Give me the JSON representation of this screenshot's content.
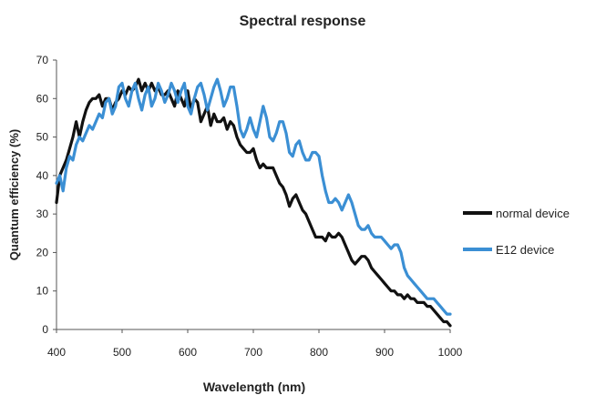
{
  "chart_data": {
    "type": "line",
    "title": "Spectral response",
    "xlabel": "Wavelength (nm)",
    "ylabel": "Quantum efficiency (%)",
    "xlim": [
      400,
      1000
    ],
    "ylim": [
      0,
      70
    ],
    "x_ticks": [
      "400",
      "500",
      "600",
      "700",
      "800",
      "900",
      "1000"
    ],
    "y_ticks": [
      "0",
      "10",
      "20",
      "30",
      "40",
      "50",
      "60",
      "70"
    ],
    "grid": false,
    "legend_position": "right",
    "series": [
      {
        "name": "normal device",
        "color": "#111111",
        "points": [
          [
            400,
            33
          ],
          [
            405,
            40
          ],
          [
            410,
            42
          ],
          [
            415,
            44
          ],
          [
            420,
            47
          ],
          [
            425,
            50
          ],
          [
            430,
            54
          ],
          [
            435,
            50
          ],
          [
            440,
            54
          ],
          [
            445,
            57
          ],
          [
            450,
            59
          ],
          [
            455,
            60
          ],
          [
            460,
            60
          ],
          [
            465,
            61
          ],
          [
            470,
            58
          ],
          [
            475,
            60
          ],
          [
            480,
            60
          ],
          [
            485,
            57
          ],
          [
            490,
            59
          ],
          [
            495,
            60
          ],
          [
            500,
            62
          ],
          [
            505,
            61
          ],
          [
            510,
            63
          ],
          [
            515,
            62
          ],
          [
            520,
            63
          ],
          [
            525,
            65
          ],
          [
            530,
            62
          ],
          [
            535,
            64
          ],
          [
            540,
            62
          ],
          [
            545,
            64
          ],
          [
            550,
            62
          ],
          [
            555,
            63
          ],
          [
            560,
            61
          ],
          [
            565,
            61
          ],
          [
            570,
            62
          ],
          [
            575,
            60
          ],
          [
            580,
            58
          ],
          [
            585,
            62
          ],
          [
            590,
            60
          ],
          [
            595,
            58
          ],
          [
            600,
            62
          ],
          [
            605,
            57
          ],
          [
            610,
            60
          ],
          [
            615,
            59
          ],
          [
            620,
            54
          ],
          [
            625,
            56
          ],
          [
            630,
            58
          ],
          [
            635,
            53
          ],
          [
            640,
            56
          ],
          [
            645,
            54
          ],
          [
            650,
            54
          ],
          [
            655,
            55
          ],
          [
            660,
            52
          ],
          [
            665,
            54
          ],
          [
            670,
            53
          ],
          [
            675,
            50
          ],
          [
            680,
            48
          ],
          [
            685,
            47
          ],
          [
            690,
            46
          ],
          [
            695,
            46
          ],
          [
            700,
            47
          ],
          [
            705,
            44
          ],
          [
            710,
            42
          ],
          [
            715,
            43
          ],
          [
            720,
            42
          ],
          [
            725,
            42
          ],
          [
            730,
            42
          ],
          [
            735,
            40
          ],
          [
            740,
            38
          ],
          [
            745,
            37
          ],
          [
            750,
            35
          ],
          [
            755,
            32
          ],
          [
            760,
            34
          ],
          [
            765,
            35
          ],
          [
            770,
            33
          ],
          [
            775,
            31
          ],
          [
            780,
            30
          ],
          [
            785,
            28
          ],
          [
            790,
            26
          ],
          [
            795,
            24
          ],
          [
            800,
            24
          ],
          [
            805,
            24
          ],
          [
            810,
            23
          ],
          [
            815,
            25
          ],
          [
            820,
            24
          ],
          [
            825,
            24
          ],
          [
            830,
            25
          ],
          [
            835,
            24
          ],
          [
            840,
            22
          ],
          [
            845,
            20
          ],
          [
            850,
            18
          ],
          [
            855,
            17
          ],
          [
            860,
            18
          ],
          [
            865,
            19
          ],
          [
            870,
            19
          ],
          [
            875,
            18
          ],
          [
            880,
            16
          ],
          [
            885,
            15
          ],
          [
            890,
            14
          ],
          [
            895,
            13
          ],
          [
            900,
            12
          ],
          [
            905,
            11
          ],
          [
            910,
            10
          ],
          [
            915,
            10
          ],
          [
            920,
            9
          ],
          [
            925,
            9
          ],
          [
            930,
            8
          ],
          [
            935,
            9
          ],
          [
            940,
            8
          ],
          [
            945,
            8
          ],
          [
            950,
            7
          ],
          [
            955,
            7
          ],
          [
            960,
            7
          ],
          [
            965,
            6
          ],
          [
            970,
            6
          ],
          [
            975,
            5
          ],
          [
            980,
            4
          ],
          [
            985,
            3
          ],
          [
            990,
            2
          ],
          [
            995,
            2
          ],
          [
            1000,
            1
          ]
        ]
      },
      {
        "name": "E12 device",
        "color": "#3b8fd4",
        "points": [
          [
            400,
            38
          ],
          [
            405,
            40
          ],
          [
            410,
            36
          ],
          [
            415,
            42
          ],
          [
            420,
            45
          ],
          [
            425,
            44
          ],
          [
            430,
            48
          ],
          [
            435,
            50
          ],
          [
            440,
            49
          ],
          [
            445,
            51
          ],
          [
            450,
            53
          ],
          [
            455,
            52
          ],
          [
            460,
            54
          ],
          [
            465,
            56
          ],
          [
            470,
            55
          ],
          [
            475,
            59
          ],
          [
            480,
            60
          ],
          [
            485,
            56
          ],
          [
            490,
            58
          ],
          [
            495,
            63
          ],
          [
            500,
            64
          ],
          [
            505,
            60
          ],
          [
            510,
            58
          ],
          [
            515,
            62
          ],
          [
            520,
            64
          ],
          [
            525,
            60
          ],
          [
            530,
            57
          ],
          [
            535,
            61
          ],
          [
            540,
            63
          ],
          [
            545,
            58
          ],
          [
            550,
            60
          ],
          [
            555,
            64
          ],
          [
            560,
            62
          ],
          [
            565,
            59
          ],
          [
            570,
            61
          ],
          [
            575,
            64
          ],
          [
            580,
            62
          ],
          [
            585,
            59
          ],
          [
            590,
            62
          ],
          [
            595,
            64
          ],
          [
            600,
            58
          ],
          [
            605,
            56
          ],
          [
            610,
            60
          ],
          [
            615,
            63
          ],
          [
            620,
            64
          ],
          [
            625,
            61
          ],
          [
            630,
            57
          ],
          [
            635,
            60
          ],
          [
            640,
            63
          ],
          [
            645,
            65
          ],
          [
            650,
            62
          ],
          [
            655,
            58
          ],
          [
            660,
            60
          ],
          [
            665,
            63
          ],
          [
            670,
            63
          ],
          [
            675,
            58
          ],
          [
            680,
            52
          ],
          [
            685,
            50
          ],
          [
            690,
            52
          ],
          [
            695,
            55
          ],
          [
            700,
            52
          ],
          [
            705,
            50
          ],
          [
            710,
            54
          ],
          [
            715,
            58
          ],
          [
            720,
            55
          ],
          [
            725,
            50
          ],
          [
            730,
            49
          ],
          [
            735,
            51
          ],
          [
            740,
            54
          ],
          [
            745,
            54
          ],
          [
            750,
            51
          ],
          [
            755,
            46
          ],
          [
            760,
            45
          ],
          [
            765,
            48
          ],
          [
            770,
            49
          ],
          [
            775,
            46
          ],
          [
            780,
            44
          ],
          [
            785,
            44
          ],
          [
            790,
            46
          ],
          [
            795,
            46
          ],
          [
            800,
            45
          ],
          [
            805,
            40
          ],
          [
            810,
            36
          ],
          [
            815,
            33
          ],
          [
            820,
            33
          ],
          [
            825,
            34
          ],
          [
            830,
            33
          ],
          [
            835,
            31
          ],
          [
            840,
            33
          ],
          [
            845,
            35
          ],
          [
            850,
            33
          ],
          [
            855,
            30
          ],
          [
            860,
            27
          ],
          [
            865,
            26
          ],
          [
            870,
            26
          ],
          [
            875,
            27
          ],
          [
            880,
            25
          ],
          [
            885,
            24
          ],
          [
            890,
            24
          ],
          [
            895,
            24
          ],
          [
            900,
            23
          ],
          [
            905,
            22
          ],
          [
            910,
            21
          ],
          [
            915,
            22
          ],
          [
            920,
            22
          ],
          [
            925,
            20
          ],
          [
            930,
            16
          ],
          [
            935,
            14
          ],
          [
            940,
            13
          ],
          [
            945,
            12
          ],
          [
            950,
            11
          ],
          [
            955,
            10
          ],
          [
            960,
            9
          ],
          [
            965,
            8
          ],
          [
            970,
            8
          ],
          [
            975,
            8
          ],
          [
            980,
            7
          ],
          [
            985,
            6
          ],
          [
            990,
            5
          ],
          [
            995,
            4
          ],
          [
            1000,
            4
          ]
        ]
      }
    ]
  }
}
